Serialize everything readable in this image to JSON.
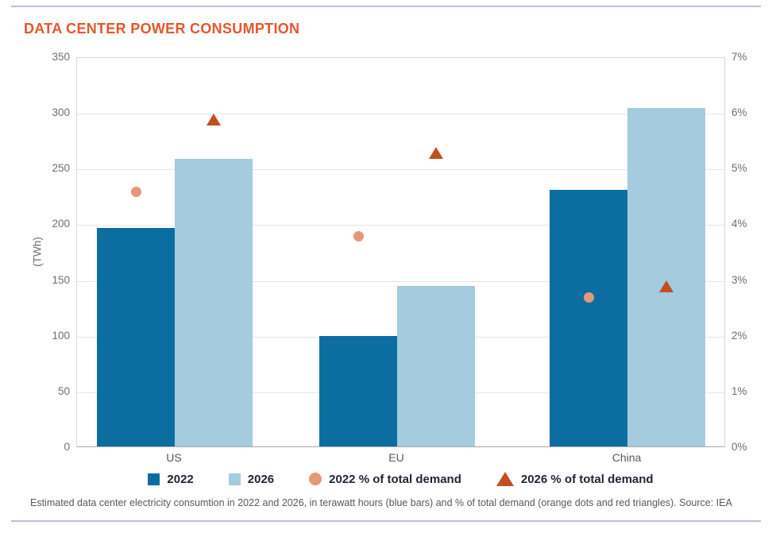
{
  "chart_data": {
    "type": "bar",
    "title": "DATA CENTER POWER CONSUMPTION",
    "ylabel": "(TWh)",
    "categories": [
      "US",
      "EU",
      "China"
    ],
    "bar_series": [
      {
        "name": "2022",
        "color": "#0c6da0",
        "axis": "left",
        "values": [
          196,
          99,
          230
        ]
      },
      {
        "name": "2026",
        "color": "#a4cbde",
        "axis": "left",
        "values": [
          258,
          144,
          304
        ]
      }
    ],
    "marker_series": [
      {
        "name": "2022 % of total demand",
        "shape": "circle",
        "color": "#e49879",
        "axis": "right",
        "values": [
          4.6,
          3.8,
          2.7
        ]
      },
      {
        "name": "2026 % of total demand",
        "shape": "triangle",
        "color": "#c24f1f",
        "axis": "right",
        "values": [
          5.9,
          5.3,
          2.9
        ]
      }
    ],
    "y_left": {
      "min": 0,
      "max": 350,
      "ticks": [
        "350",
        "300",
        "250",
        "200",
        "150",
        "100",
        "50",
        "0"
      ]
    },
    "y_right": {
      "min": 0,
      "max": 7,
      "ticks": [
        "7%",
        "6%",
        "5%",
        "4%",
        "3%",
        "2%",
        "1%",
        "0%"
      ]
    },
    "grid": true,
    "legend_position": "bottom"
  },
  "caption": "Estimated data center electricity consumtion in 2022 and 2026, in terawatt hours (blue bars) and % of total demand (orange dots and red triangles). Source: IEA",
  "colors": {
    "title": "#e5562c",
    "divider_rule": "#b6c0d8",
    "bar_2022": "#0c6da0",
    "bar_2026": "#a4cbde",
    "dot_2022_pct": "#e49879",
    "triangle_2026_pct": "#c24f1f"
  }
}
